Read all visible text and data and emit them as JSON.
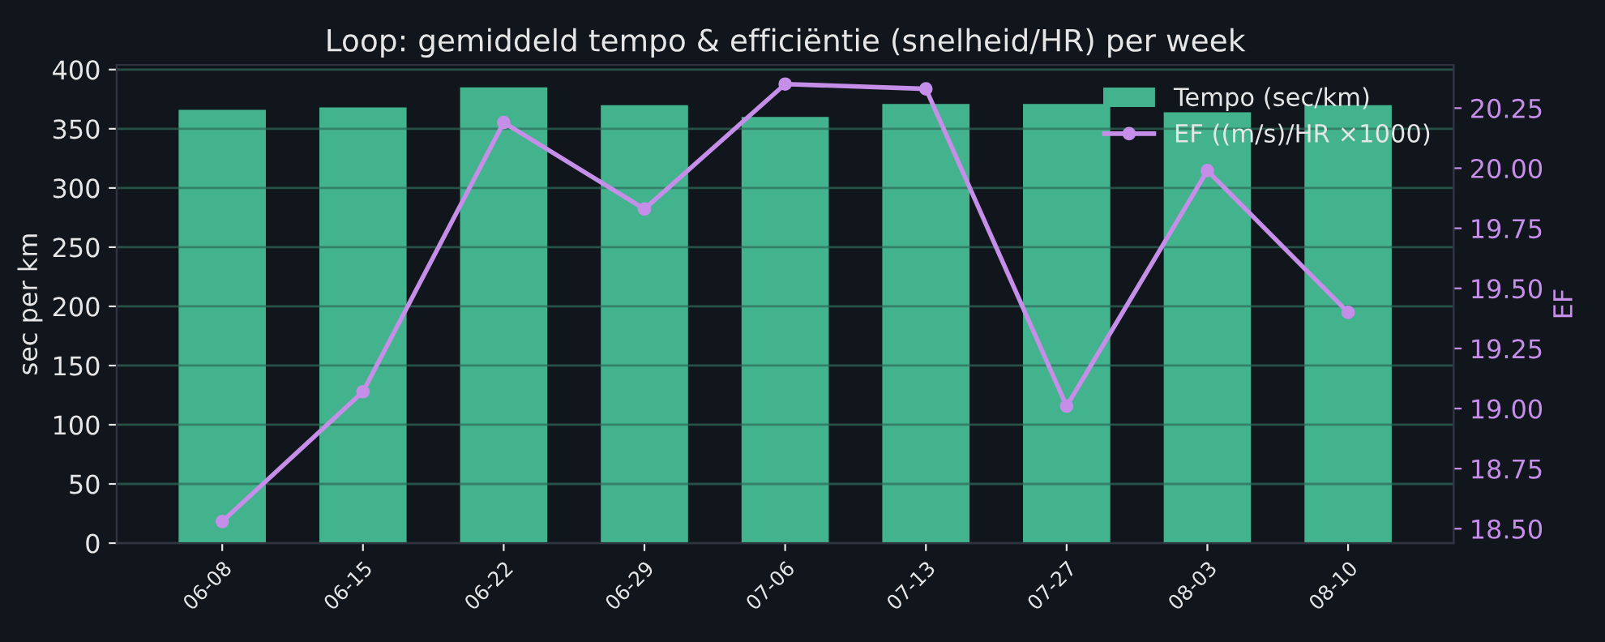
{
  "chart_data": {
    "type": "bar",
    "title": "Loop: gemiddeld tempo & efficiëntie (snelheid/HR) per week",
    "categories": [
      "06-08",
      "06-15",
      "06-22",
      "06-29",
      "07-06",
      "07-13",
      "07-27",
      "08-03",
      "08-10"
    ],
    "series": [
      {
        "name": "Tempo (sec/km)",
        "color": "#43b38e",
        "values": [
          366,
          368,
          385,
          370,
          360,
          371,
          371,
          364,
          370
        ]
      },
      {
        "name": "EF ((m/s)/HR ×1000)",
        "type": "line",
        "axis": "y2",
        "color": "#c58ee8",
        "marker": "circle",
        "values": [
          18.53,
          19.07,
          20.19,
          19.83,
          20.35,
          20.33,
          19.01,
          19.99,
          19.4
        ]
      }
    ],
    "ylabel": "sec per km",
    "y2label": "EF",
    "ylim": [
      0,
      404
    ],
    "yticks": [
      0,
      50,
      100,
      150,
      200,
      250,
      300,
      350,
      400
    ],
    "y2lim": [
      18.44,
      20.43
    ],
    "y2ticks": [
      {
        "value": 18.5,
        "label": "18.50"
      },
      {
        "value": 18.75,
        "label": "18.75"
      },
      {
        "value": 19.0,
        "label": "19.00"
      },
      {
        "value": 19.25,
        "label": "19.25"
      },
      {
        "value": 19.5,
        "label": "19.50"
      },
      {
        "value": 19.75,
        "label": "19.75"
      },
      {
        "value": 20.0,
        "label": "20.00"
      },
      {
        "value": 20.25,
        "label": "20.25"
      }
    ],
    "grid": "y",
    "legend": "top right"
  }
}
